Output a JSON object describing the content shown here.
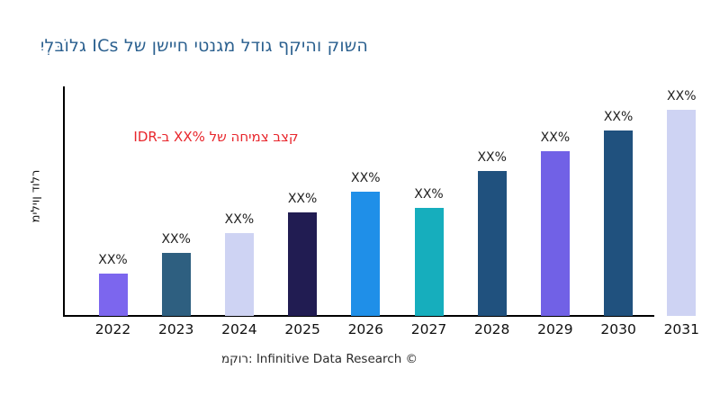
{
  "title": {
    "text": "יִלְבּוֹלג ICs לש ןשייח יטנגמ לדוג ףקיהו קושה",
    "color": "#2B608F"
  },
  "annotation": {
    "text": "IDR-ב XX% לש החימצ בצק",
    "color": "#E8262C"
  },
  "y_axis_label": "מיליון דולר",
  "footer": {
    "text": "מקור: Infinitive Data Research ©"
  },
  "chart_data": {
    "type": "bar",
    "title_visual_order": "יִלְבּוֹלג ICs לש ןשייח יטנגמ לדוג ףקיהו קושה",
    "ylabel": "מיליון דולר",
    "xlabel": "",
    "grid": false,
    "legend": false,
    "axis_color": "#000000",
    "categories": [
      "2022",
      "2023",
      "2024",
      "2025",
      "2026",
      "2027",
      "2028",
      "2029",
      "2030",
      "2031"
    ],
    "value_labels": [
      "XX%",
      "XX%",
      "XX%",
      "XX%",
      "XX%",
      "XX%",
      "XX%",
      "XX%",
      "XX%",
      "XX%"
    ],
    "relative_heights": [
      0.205,
      0.306,
      0.402,
      0.502,
      0.603,
      0.524,
      0.703,
      0.799,
      0.9,
      1.0
    ],
    "bar_colors": [
      "#7C66EE",
      "#2E5F80",
      "#CED3F3",
      "#211C52",
      "#1F8FE8",
      "#16AEBD",
      "#20517E",
      "#7161E6",
      "#20517E",
      "#CED3F3"
    ]
  }
}
